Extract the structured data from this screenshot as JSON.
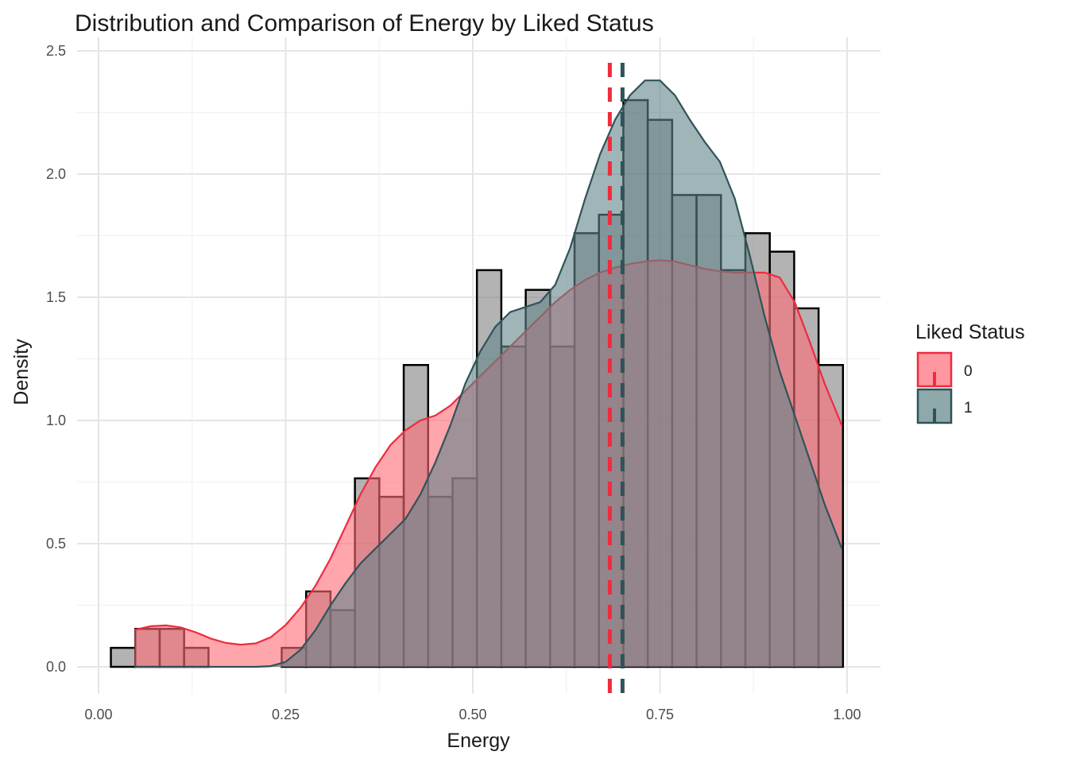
{
  "chart_data": {
    "type": "histogram-density",
    "title": "Distribution and Comparison of Energy by Liked Status",
    "xlabel": "Energy",
    "ylabel": "Density",
    "xlim": [
      0,
      1
    ],
    "ylim": [
      0,
      2.5
    ],
    "x_ticks": [
      0.0,
      0.25,
      0.5,
      0.75,
      1.0
    ],
    "x_tick_labels": [
      "0.00",
      "0.25",
      "0.50",
      "0.75",
      "1.00"
    ],
    "y_ticks": [
      0.0,
      0.5,
      1.0,
      1.5,
      2.0,
      2.5
    ],
    "y_tick_labels": [
      "0.0",
      "0.5",
      "1.0",
      "1.5",
      "2.0",
      "2.5"
    ],
    "grid": true,
    "legend": {
      "title": "Liked Status",
      "placement": "right",
      "entries": [
        {
          "label": "0",
          "fill": "#ff6b77",
          "stroke": "#ef2b3d"
        },
        {
          "label": "1",
          "fill": "#5f8488",
          "stroke": "#2f5358"
        }
      ]
    },
    "histogram": {
      "bin_width": 0.0326,
      "fill": "#808080",
      "stroke": "#000000",
      "bins": [
        {
          "x0": 0.0165,
          "x1": 0.0491,
          "y": 0.077
        },
        {
          "x0": 0.0491,
          "x1": 0.0817,
          "y": 0.154
        },
        {
          "x0": 0.0817,
          "x1": 0.1143,
          "y": 0.154
        },
        {
          "x0": 0.1143,
          "x1": 0.1469,
          "y": 0.077
        },
        {
          "x0": 0.1469,
          "x1": 0.1795,
          "y": 0.0
        },
        {
          "x0": 0.1795,
          "x1": 0.2121,
          "y": 0.0
        },
        {
          "x0": 0.2121,
          "x1": 0.2447,
          "y": 0.0
        },
        {
          "x0": 0.2447,
          "x1": 0.2773,
          "y": 0.077
        },
        {
          "x0": 0.2773,
          "x1": 0.3099,
          "y": 0.306
        },
        {
          "x0": 0.3099,
          "x1": 0.3425,
          "y": 0.23
        },
        {
          "x0": 0.3425,
          "x1": 0.3751,
          "y": 0.765
        },
        {
          "x0": 0.3751,
          "x1": 0.4077,
          "y": 0.69
        },
        {
          "x0": 0.4077,
          "x1": 0.4403,
          "y": 1.225
        },
        {
          "x0": 0.4403,
          "x1": 0.4729,
          "y": 0.69
        },
        {
          "x0": 0.4729,
          "x1": 0.5055,
          "y": 0.765
        },
        {
          "x0": 0.5055,
          "x1": 0.5381,
          "y": 1.61
        },
        {
          "x0": 0.5381,
          "x1": 0.5707,
          "y": 1.3
        },
        {
          "x0": 0.5707,
          "x1": 0.6033,
          "y": 1.53
        },
        {
          "x0": 0.6033,
          "x1": 0.6359,
          "y": 1.3
        },
        {
          "x0": 0.6359,
          "x1": 0.6685,
          "y": 1.76
        },
        {
          "x0": 0.6685,
          "x1": 0.7011,
          "y": 1.835
        },
        {
          "x0": 0.7011,
          "x1": 0.7337,
          "y": 2.3
        },
        {
          "x0": 0.7337,
          "x1": 0.7663,
          "y": 2.22
        },
        {
          "x0": 0.7663,
          "x1": 0.7989,
          "y": 1.915
        },
        {
          "x0": 0.7989,
          "x1": 0.8315,
          "y": 1.915
        },
        {
          "x0": 0.8315,
          "x1": 0.8641,
          "y": 1.61
        },
        {
          "x0": 0.8641,
          "x1": 0.8967,
          "y": 1.76
        },
        {
          "x0": 0.8967,
          "x1": 0.9293,
          "y": 1.685
        },
        {
          "x0": 0.9293,
          "x1": 0.9619,
          "y": 1.455
        },
        {
          "x0": 0.9619,
          "x1": 0.9945,
          "y": 1.225
        }
      ]
    },
    "series": [
      {
        "name": "0",
        "fill": "#ff6b77",
        "stroke": "#ef2b3d",
        "mean": 0.683,
        "x": [
          0.048,
          0.07,
          0.09,
          0.11,
          0.13,
          0.15,
          0.17,
          0.19,
          0.21,
          0.23,
          0.25,
          0.27,
          0.29,
          0.31,
          0.33,
          0.35,
          0.37,
          0.39,
          0.41,
          0.43,
          0.45,
          0.47,
          0.49,
          0.51,
          0.53,
          0.55,
          0.57,
          0.59,
          0.61,
          0.63,
          0.65,
          0.67,
          0.69,
          0.71,
          0.73,
          0.75,
          0.77,
          0.79,
          0.81,
          0.83,
          0.85,
          0.87,
          0.89,
          0.91,
          0.93,
          0.95,
          0.97,
          0.993
        ],
        "y": [
          0.15,
          0.165,
          0.168,
          0.16,
          0.14,
          0.115,
          0.097,
          0.09,
          0.095,
          0.12,
          0.17,
          0.24,
          0.33,
          0.44,
          0.57,
          0.7,
          0.81,
          0.9,
          0.96,
          1.0,
          1.02,
          1.06,
          1.12,
          1.18,
          1.24,
          1.3,
          1.36,
          1.42,
          1.48,
          1.53,
          1.57,
          1.6,
          1.62,
          1.635,
          1.645,
          1.65,
          1.645,
          1.63,
          1.615,
          1.605,
          1.6,
          1.6,
          1.6,
          1.58,
          1.48,
          1.32,
          1.15,
          0.98
        ]
      },
      {
        "name": "1",
        "fill": "#5f8488",
        "stroke": "#2f5358",
        "mean": 0.7,
        "x": [
          0.048,
          0.07,
          0.09,
          0.11,
          0.13,
          0.15,
          0.17,
          0.19,
          0.21,
          0.23,
          0.25,
          0.27,
          0.29,
          0.31,
          0.33,
          0.35,
          0.37,
          0.39,
          0.41,
          0.43,
          0.45,
          0.47,
          0.49,
          0.51,
          0.53,
          0.55,
          0.57,
          0.59,
          0.61,
          0.63,
          0.65,
          0.67,
          0.69,
          0.71,
          0.73,
          0.75,
          0.77,
          0.79,
          0.81,
          0.83,
          0.85,
          0.87,
          0.89,
          0.91,
          0.93,
          0.95,
          0.97,
          0.993
        ],
        "y": [
          0.0,
          0.0,
          0.0,
          0.0,
          0.0,
          0.0,
          0.0,
          0.0,
          0.0,
          0.003,
          0.02,
          0.07,
          0.15,
          0.25,
          0.34,
          0.42,
          0.48,
          0.54,
          0.6,
          0.7,
          0.83,
          0.98,
          1.15,
          1.28,
          1.38,
          1.44,
          1.46,
          1.48,
          1.55,
          1.7,
          1.9,
          2.08,
          2.22,
          2.32,
          2.38,
          2.38,
          2.32,
          2.22,
          2.13,
          2.05,
          1.9,
          1.67,
          1.42,
          1.2,
          1.02,
          0.84,
          0.66,
          0.48
        ]
      }
    ]
  }
}
